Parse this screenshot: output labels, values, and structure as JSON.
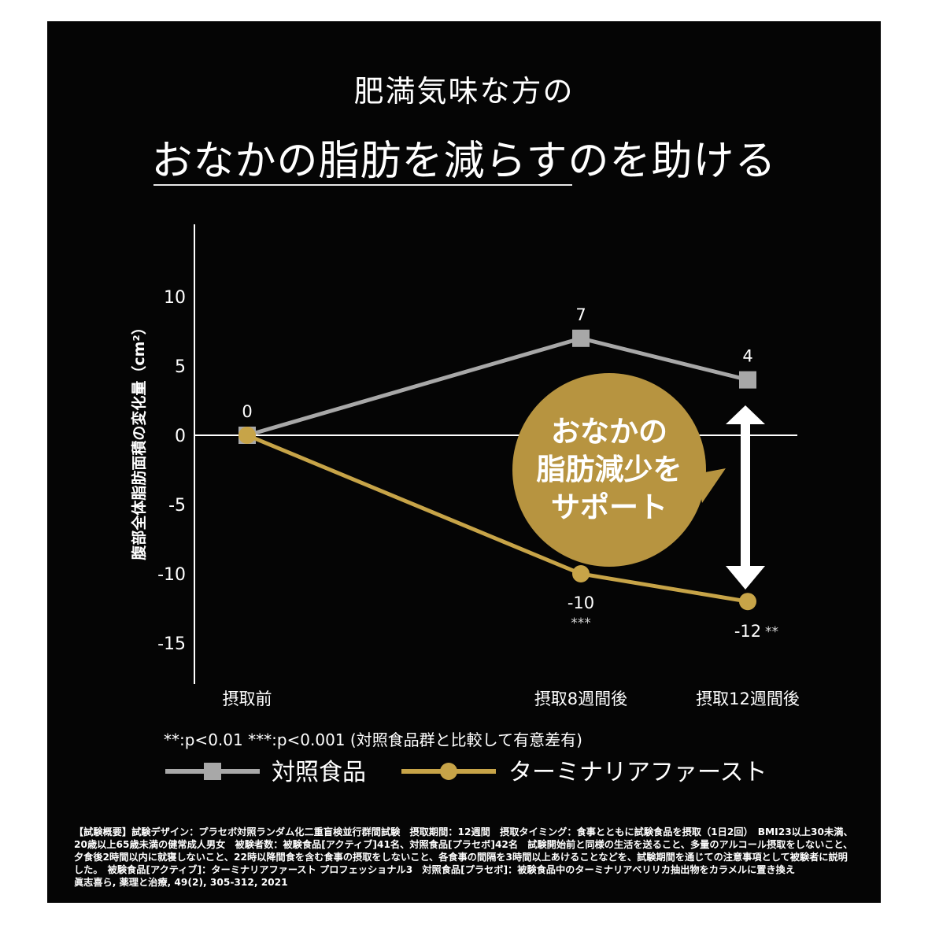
{
  "title_line1": "肥満気味な方の",
  "title_line2": "おなかの脂肪を減らすのを助ける",
  "chart_data": {
    "type": "line",
    "ylabel": "腹部全体脂肪面積の変化量（cm²）",
    "ylim": [
      -18,
      15
    ],
    "yticks": [
      10,
      5,
      0,
      -5,
      -10,
      -15
    ],
    "categories": [
      "摂取前",
      "摂取8週間後",
      "摂取12週間後"
    ],
    "series": [
      {
        "name": "対照食品",
        "marker": "square",
        "color": "#a8a8a8",
        "values": [
          0,
          7,
          4
        ],
        "labels": [
          "0",
          "7",
          "4"
        ],
        "significance": [
          "",
          "",
          ""
        ]
      },
      {
        "name": "ターミナリアファースト",
        "marker": "circle",
        "color": "#c7a448",
        "values": [
          0,
          -10,
          -12
        ],
        "labels": [
          "",
          "-10",
          "-12"
        ],
        "significance": [
          "",
          "***",
          "**"
        ]
      }
    ],
    "annotation": [
      "おなかの",
      "脂肪減少を",
      "サポート"
    ],
    "legend_position": "bottom"
  },
  "significance_note": "**:p<0.01 ***:p<0.001 (対照食品群と比較して有意差有)",
  "footnote_lines": [
    "【試験概要】試験デザイン：プラセボ対照ランダム化二重盲検並行群間試験　摂取期間：12週間　摂取タイミング：食事とともに試験食品を摂取（1日2回）　BMI23以上30未満、",
    "20歳以上65歳未満の健常成人男女　被験者数：被験食品[アクティブ]41名、対照食品[プラセボ]42名　試験開始前と同様の生活を送ること、多量のアルコール摂取をしないこと、",
    "夕食後2時間以内に就寝しないこと、22時以降間食を含む食事の摂取をしないこと、各食事の間隔を3時間以上あけることなどを、試験期間を通じての注意事項として被験者に説明",
    "した。　被験食品[アクティブ]：ターミナリアファースト プロフェッショナル3　対照食品[プラセボ]：被験食品中のターミナリアベリリカ抽出物をカラメルに置き換え",
    "眞志喜ら, 薬理と治療, 49(2), 305-312, 2021"
  ],
  "colors": {
    "background": "#050505",
    "control": "#a8a8a8",
    "active": "#c7a448",
    "bubble": "#b79440"
  }
}
